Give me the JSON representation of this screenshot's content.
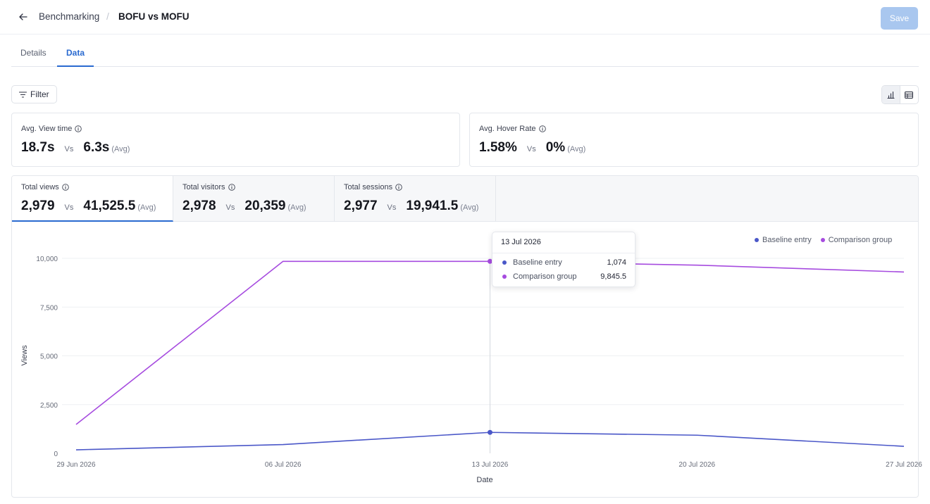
{
  "header": {
    "breadcrumb_parent": "Benchmarking",
    "breadcrumb_separator": "/",
    "breadcrumb_current": "BOFU vs MOFU",
    "save_label": "Save"
  },
  "tabs": [
    {
      "label": "Details",
      "active": false
    },
    {
      "label": "Data",
      "active": true
    }
  ],
  "toolbar": {
    "filter_label": "Filter",
    "view_toggle": [
      "bar-chart-icon",
      "table-icon"
    ],
    "active_view": "chart"
  },
  "kpis": [
    {
      "label": "Avg. View time",
      "value": "18.7s",
      "vs": "Vs",
      "compare": "6.3s",
      "avg": "(Avg)"
    },
    {
      "label": "Avg. Hover Rate",
      "value": "1.58%",
      "vs": "Vs",
      "compare": "0%",
      "avg": "(Avg)"
    }
  ],
  "metric_tabs": [
    {
      "label": "Total views",
      "value": "2,979",
      "vs": "Vs",
      "compare": "41,525.5",
      "avg": "(Avg)",
      "active": true
    },
    {
      "label": "Total visitors",
      "value": "2,978",
      "vs": "Vs",
      "compare": "20,359",
      "avg": "(Avg)",
      "active": false
    },
    {
      "label": "Total sessions",
      "value": "2,977",
      "vs": "Vs",
      "compare": "19,941.5",
      "avg": "(Avg)",
      "active": false
    }
  ],
  "colors": {
    "accent": "#2a6ad0",
    "baseline": "#4a57c8",
    "comparison": "#a64bdf"
  },
  "tooltip": {
    "date": "13 Jul 2026",
    "rows": [
      {
        "name": "Baseline entry",
        "value": "1,074"
      },
      {
        "name": "Comparison group",
        "value": "9,845.5"
      }
    ]
  },
  "chart_data": {
    "type": "line",
    "title": "",
    "xlabel": "Date",
    "ylabel": "Views",
    "x": [
      "29 Jun 2026",
      "06 Jul 2026",
      "13 Jul 2026",
      "20 Jul 2026",
      "27 Jul 2026"
    ],
    "ylim": [
      0,
      10000
    ],
    "yticks": [
      "0",
      "2,500",
      "5,000",
      "7,500",
      "10,000"
    ],
    "grid": true,
    "legend_position": "top-right",
    "series": [
      {
        "name": "Baseline entry",
        "values": [
          180,
          450,
          1074,
          930,
          360
        ]
      },
      {
        "name": "Comparison group",
        "values": [
          1480,
          9845.5,
          9845.5,
          9650,
          9300
        ]
      }
    ],
    "highlight_index": 2
  }
}
